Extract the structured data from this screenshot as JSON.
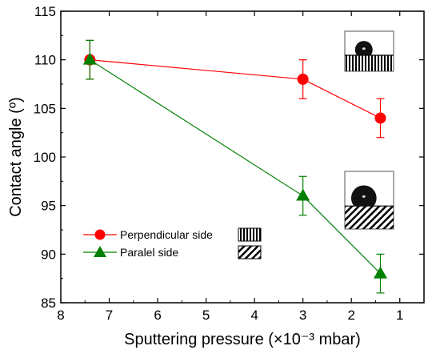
{
  "chart_data": {
    "type": "line",
    "xlabel": "Sputtering pressure (×10⁻³ mbar)",
    "ylabel": "Contact angle (º)",
    "xlim": [
      8,
      0.5
    ],
    "ylim": [
      85,
      115
    ],
    "x_reversed": true,
    "xticks": [
      8,
      7,
      6,
      5,
      4,
      3,
      2,
      1
    ],
    "yticks": [
      85,
      90,
      95,
      100,
      105,
      110,
      115
    ],
    "grid": false,
    "legend_position": "lower-left",
    "series": [
      {
        "name": "Perpendicular side",
        "color": "#ff0000",
        "marker": "circle",
        "x": [
          7.4,
          3.0,
          1.4
        ],
        "y": [
          110,
          108,
          104
        ],
        "error": [
          2,
          2,
          2
        ]
      },
      {
        "name": "Paralel side",
        "color": "#008000",
        "marker": "triangle",
        "x": [
          7.4,
          3.0,
          1.4
        ],
        "y": [
          110,
          96,
          88
        ],
        "error": [
          2,
          2,
          2
        ]
      }
    ],
    "insets": [
      "droplet-on-perpendicular-grooves",
      "droplet-on-parallel-stripes"
    ]
  }
}
